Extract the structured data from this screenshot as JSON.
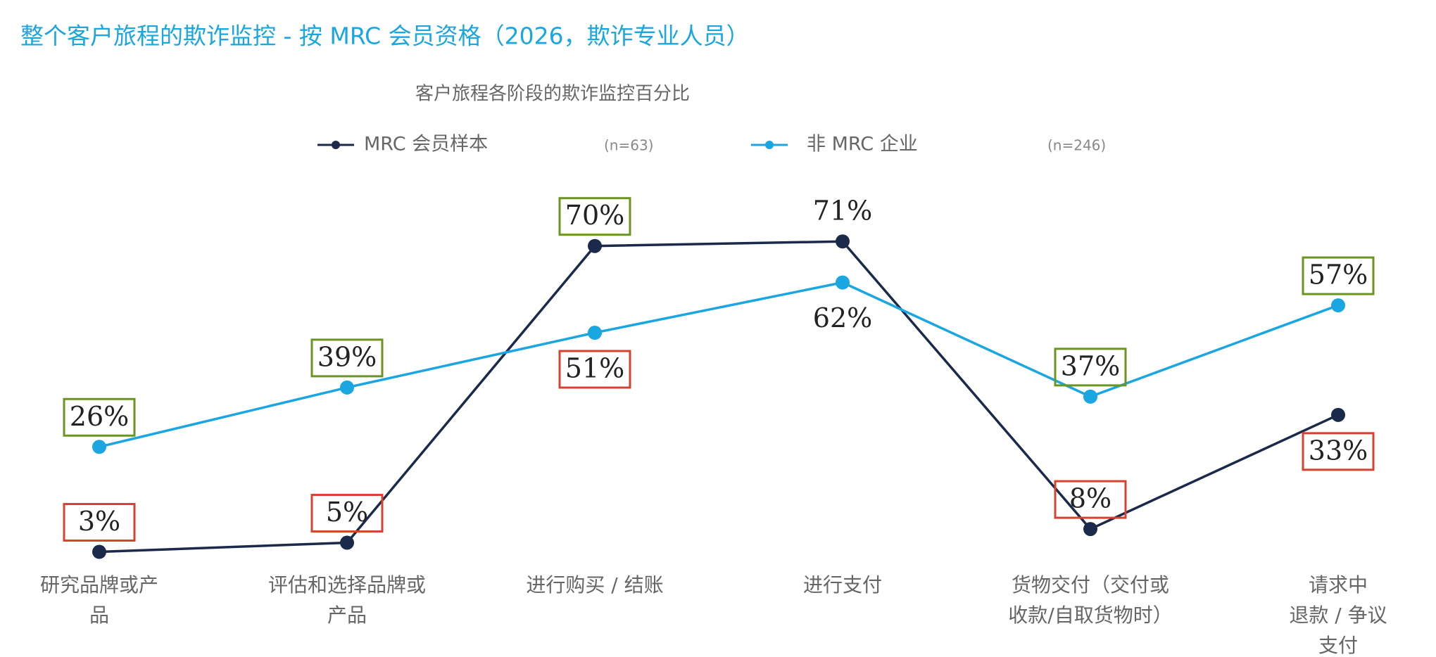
{
  "chart_data": {
    "type": "line",
    "title": "整个客户旅程的欺诈监控 - 按 MRC 会员资格（2026，欺诈专业人员）",
    "subtitle": "客户旅程各阶段的欺诈监控百分比",
    "categories": [
      "研究品牌或产\n品",
      "评估和选择品牌或\n产品",
      "进行购买 / 结账",
      "进行支付",
      "货物交付（交付或\n收款/自取货物时）",
      "请求中\n退款 / 争议\n支付"
    ],
    "series": [
      {
        "name": "MRC 会员样本",
        "n_label": "(n=63)",
        "color": "#1b2a4a",
        "values": [
          3,
          5,
          70,
          71,
          8,
          33
        ],
        "value_labels": [
          "3%",
          "5%",
          "70%",
          "71%",
          "8%",
          "33%"
        ],
        "label_positions": [
          "above",
          "above",
          "above",
          "above",
          "above",
          "below"
        ],
        "label_box_colors": [
          "#d9412f",
          "#d9412f",
          "#6a961f",
          null,
          "#d9412f",
          "#d9412f"
        ]
      },
      {
        "name": "非 MRC 企业",
        "n_label": "(n=246)",
        "color": "#1aa6e0",
        "values": [
          26,
          39,
          51,
          62,
          37,
          57
        ],
        "value_labels": [
          "26%",
          "39%",
          "51%",
          "62%",
          "37%",
          "57%"
        ],
        "label_positions": [
          "above",
          "above",
          "below",
          "below",
          "above",
          "above"
        ],
        "label_box_colors": [
          "#6a961f",
          "#6a961f",
          "#d9412f",
          null,
          "#6a961f",
          "#6a961f"
        ]
      }
    ]
  }
}
